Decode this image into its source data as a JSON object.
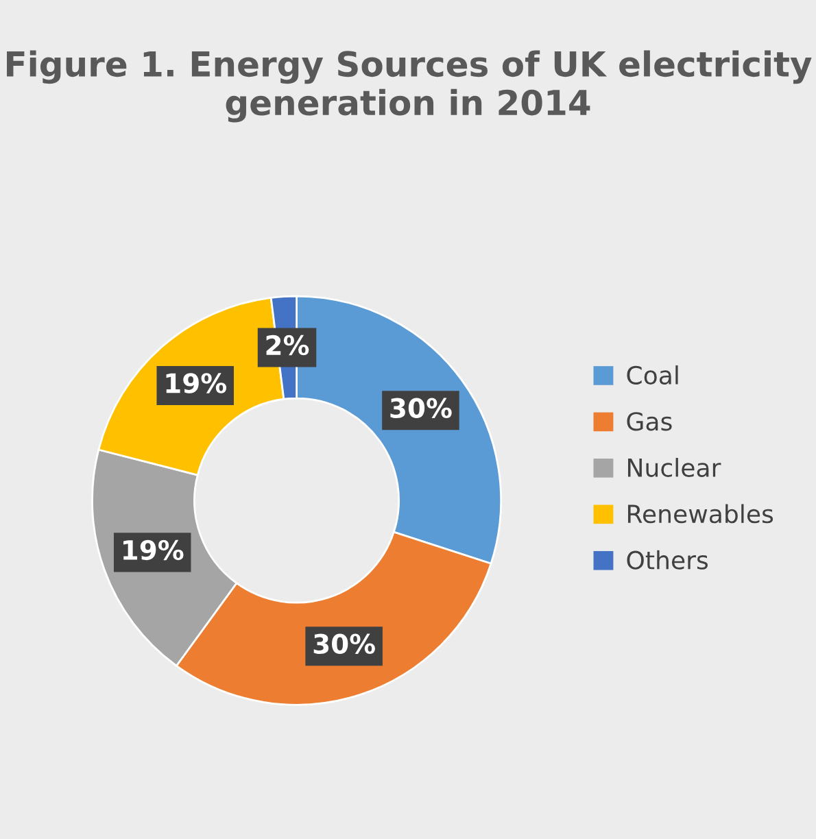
{
  "chart_data": {
    "type": "donut",
    "title": "Figure 1. Energy Sources of UK electricity generation in 2014",
    "categories": [
      "Coal",
      "Gas",
      "Nuclear",
      "Renewables",
      "Others"
    ],
    "values": [
      30,
      30,
      19,
      19,
      2
    ],
    "colors": [
      "#5b9bd5",
      "#ed7d31",
      "#a5a5a5",
      "#ffc000",
      "#4472c4"
    ],
    "value_labels": [
      "30%",
      "30%",
      "19%",
      "19%",
      "2%"
    ],
    "legend": "right"
  }
}
